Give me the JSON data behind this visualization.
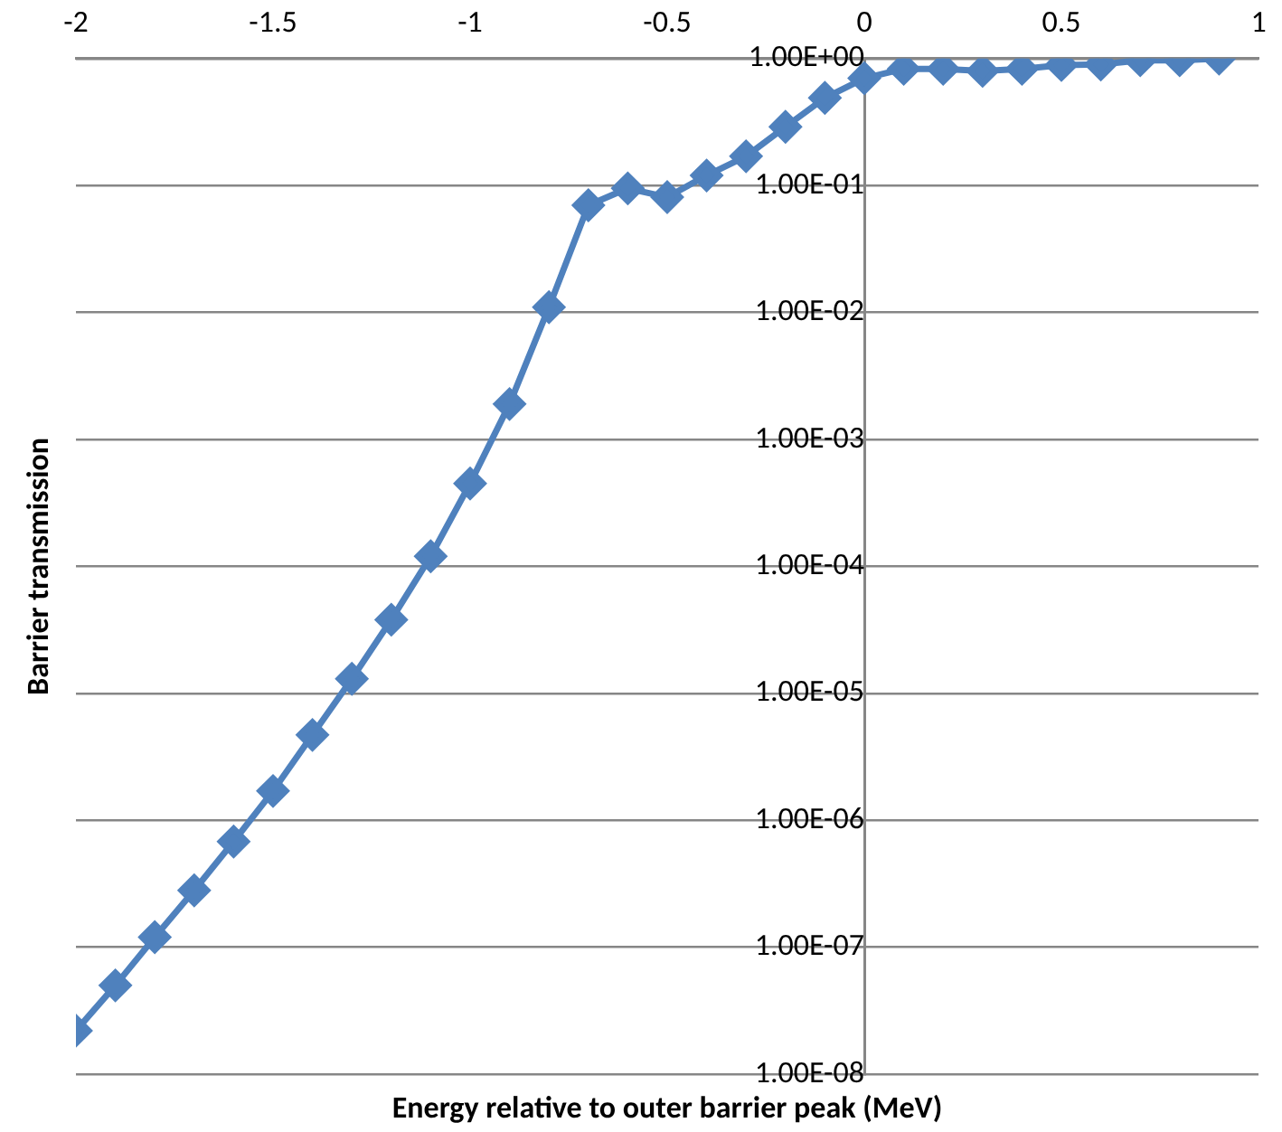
{
  "chart_data": {
    "type": "line",
    "xlabel": "Energy relative to outer barrier peak (MeV)",
    "ylabel": "Barrier transmission",
    "log": "y",
    "grid": "y",
    "legend": false,
    "marker": "diamond",
    "line_style": "solid",
    "xlim": [
      -2,
      1
    ],
    "xticks": [
      -2,
      -1.5,
      -1,
      -0.5,
      0,
      0.5,
      1
    ],
    "ylim": [
      1e-08,
      1
    ],
    "yticks": [
      {
        "value": 1e-08,
        "label": "1.00E-08"
      },
      {
        "value": 1e-07,
        "label": "1.00E-07"
      },
      {
        "value": 1e-06,
        "label": "1.00E-06"
      },
      {
        "value": 1e-05,
        "label": "1.00E-05"
      },
      {
        "value": 0.0001,
        "label": "1.00E-04"
      },
      {
        "value": 0.001,
        "label": "1.00E-03"
      },
      {
        "value": 0.01,
        "label": "1.00E-02"
      },
      {
        "value": 0.1,
        "label": "1.00E-01"
      },
      {
        "value": 1,
        "label": "1.00E+00"
      }
    ],
    "series": [
      {
        "color": "#4f81bd",
        "x": [
          -2,
          -1.9,
          -1.8,
          -1.7,
          -1.6,
          -1.5,
          -1.4,
          -1.3,
          -1.2,
          -1.1,
          -1,
          -0.9,
          -0.8,
          -0.7,
          -0.6,
          -0.5,
          -0.4,
          -0.3,
          -0.2,
          -0.1,
          0,
          0.1,
          0.2,
          0.3,
          0.4,
          0.5,
          0.6,
          0.7,
          0.8,
          0.9
        ],
        "values": [
          2.2e-08,
          5e-08,
          1.2e-07,
          2.8e-07,
          6.8e-07,
          1.7e-06,
          4.7e-06,
          1.3e-05,
          3.8e-05,
          0.00012,
          0.00045,
          0.0019,
          0.011,
          0.07,
          0.095,
          0.081,
          0.12,
          0.17,
          0.29,
          0.49,
          0.7,
          0.83,
          0.83,
          0.8,
          0.83,
          0.89,
          0.9,
          0.97,
          0.97,
          1.0
        ]
      }
    ]
  }
}
